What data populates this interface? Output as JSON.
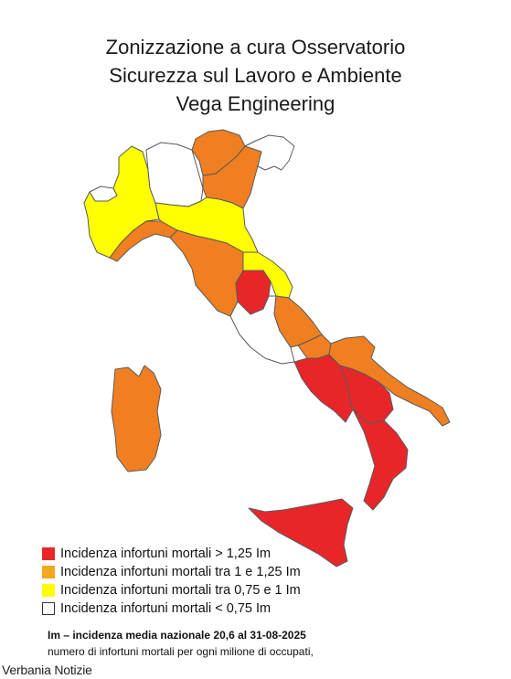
{
  "title": {
    "line1": "Zonizzazione a cura Osservatorio",
    "line2": "Sicurezza sul Lavoro e Ambiente",
    "line3": "Vega Engineering"
  },
  "colors": {
    "red": "#e8262a",
    "orange": "#f07f22",
    "yellow": "#ffff00",
    "white": "#ffffff",
    "border": "#5a5a5a"
  },
  "legend": [
    {
      "label": "Incidenza infortuni mortali > 1,25 Im",
      "color": "#e8262a"
    },
    {
      "label": "Incidenza infortuni mortali tra 1 e 1,25 Im",
      "color": "#f5a623"
    },
    {
      "label": "Incidenza infortuni mortali tra 0,75 e 1 Im",
      "color": "#ffff00"
    },
    {
      "label": "Incidenza infortuni mortali < 0,75 Im",
      "color": "#ffffff"
    }
  ],
  "note": {
    "bold": "Im – incidenza media nazionale 20,6 al 31-08-2025",
    "line": "numero di infortuni mortali per ogni milione di occupati,"
  },
  "watermark": "Verbania Notizie",
  "regions": {
    "valle_aosta": "white",
    "piemonte": "yellow",
    "lombardia": "white",
    "trentino_alto_adige": "orange",
    "veneto": "orange",
    "friuli_venezia_giulia": "white",
    "liguria": "orange",
    "emilia_romagna": "yellow",
    "toscana": "orange",
    "marche": "yellow",
    "umbria": "red",
    "lazio": "white",
    "abruzzo": "orange",
    "molise": "orange",
    "campania": "red",
    "puglia": "orange",
    "basilicata": "red",
    "calabria": "red",
    "sicilia": "red",
    "sardegna": "orange"
  }
}
